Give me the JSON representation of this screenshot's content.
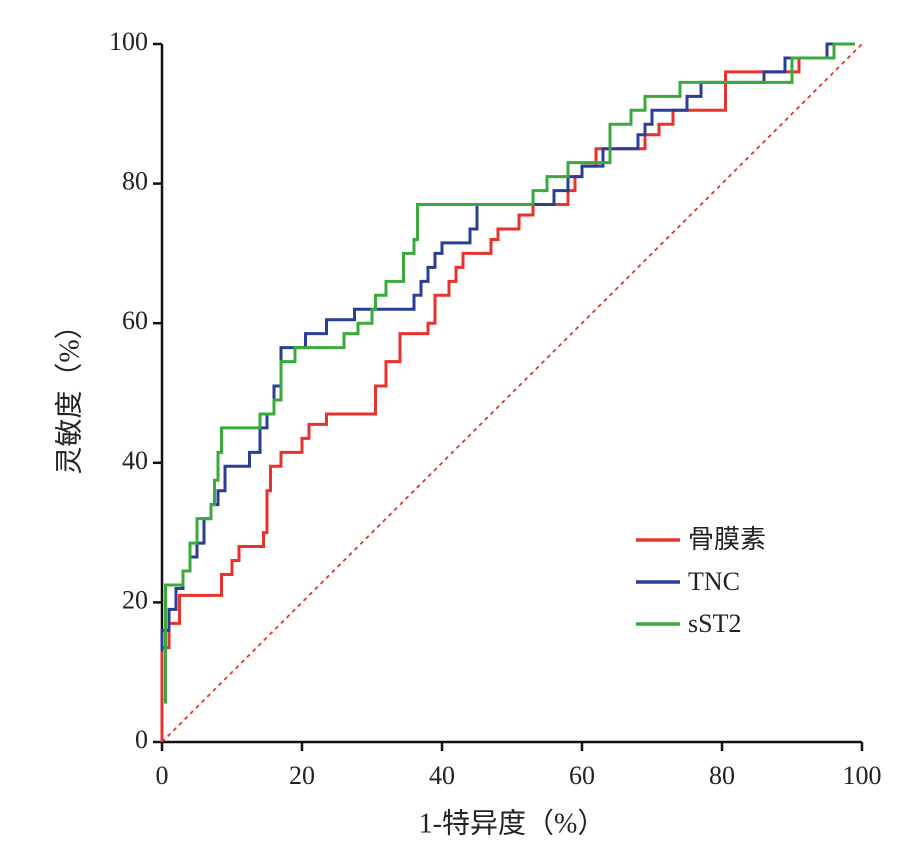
{
  "chart_data": {
    "type": "line",
    "step": true,
    "x_label": "1-特异度（%）",
    "y_label": "灵敏度（%）",
    "xlim": [
      0,
      100
    ],
    "ylim": [
      0,
      100
    ],
    "xticks": [
      0,
      20,
      40,
      60,
      80,
      100
    ],
    "yticks": [
      0,
      20,
      40,
      60,
      80,
      100
    ],
    "reference_line": true,
    "legend": "lower right",
    "series": [
      {
        "name": "骨膜素",
        "color": "#e8322d",
        "x": [
          0,
          0,
          1,
          1,
          2.5,
          2.5,
          8.5,
          8.5,
          10,
          10,
          11,
          11,
          14.5,
          14.5,
          15,
          15,
          15.5,
          15.5,
          17,
          17,
          20,
          20,
          21,
          21,
          23.5,
          23.5,
          30.5,
          30.5,
          32,
          32,
          34,
          34,
          38,
          38,
          39,
          39,
          41,
          41,
          42,
          42,
          43,
          43,
          47,
          47,
          48,
          48,
          51,
          51,
          53,
          53,
          58,
          58,
          59,
          59,
          60,
          60,
          62,
          62,
          69,
          69,
          71,
          71,
          73,
          73,
          80.5,
          80.5,
          91,
          91,
          96,
          96,
          99
        ],
        "values": [
          0,
          13.5,
          13.5,
          17,
          17,
          21,
          21,
          24,
          24,
          26,
          26,
          28,
          28,
          30,
          30,
          36,
          36,
          39.5,
          39.5,
          41.5,
          41.5,
          43.5,
          43.5,
          45.5,
          45.5,
          47,
          47,
          51,
          51,
          54.5,
          54.5,
          58.5,
          58.5,
          60,
          60,
          64,
          64,
          66,
          66,
          68,
          68,
          70,
          70,
          72,
          72,
          73.5,
          73.5,
          75.5,
          75.5,
          77,
          77,
          79,
          79,
          81,
          81,
          82.5,
          82.5,
          85,
          85,
          87,
          87,
          88.5,
          88.5,
          90.5,
          90.5,
          96,
          96,
          98,
          98,
          100,
          100
        ]
      },
      {
        "name": "TNC",
        "color": "#2b3d96",
        "x": [
          0,
          0,
          1,
          1,
          2,
          2,
          3,
          3,
          4,
          4,
          5,
          5,
          6,
          6,
          7,
          7,
          8,
          8,
          9,
          9,
          12.5,
          12.5,
          14,
          14,
          15,
          15,
          16,
          16,
          17,
          17,
          20.5,
          20.5,
          23.5,
          23.5,
          27.5,
          27.5,
          36,
          36,
          37,
          37,
          38,
          38,
          39,
          39,
          40,
          40,
          44,
          44,
          45,
          45,
          56,
          56,
          58,
          58,
          60,
          60,
          63,
          63,
          68,
          68,
          69,
          69,
          70,
          70,
          75,
          75,
          77,
          77,
          86,
          86,
          89,
          89,
          95,
          95,
          99
        ],
        "values": [
          13,
          16,
          16,
          19,
          19,
          22,
          22,
          24.5,
          24.5,
          26.5,
          26.5,
          28.5,
          28.5,
          32,
          32,
          34,
          34,
          36,
          36,
          39.5,
          39.5,
          41.5,
          41.5,
          45,
          45,
          47,
          47,
          51,
          51,
          56.5,
          56.5,
          58.5,
          58.5,
          60.5,
          60.5,
          62,
          62,
          64,
          64,
          66,
          66,
          68,
          68,
          70,
          70,
          71.5,
          71.5,
          73.5,
          73.5,
          77,
          77,
          79,
          79,
          81,
          81,
          82.5,
          82.5,
          85,
          85,
          87,
          87,
          88.5,
          88.5,
          90.5,
          90.5,
          92.5,
          92.5,
          94.5,
          94.5,
          96,
          96,
          98,
          98,
          100,
          100
        ]
      },
      {
        "name": "sST2",
        "color": "#3aaa3c",
        "x": [
          0.5,
          0.5,
          3,
          3,
          4,
          4,
          5,
          5,
          7,
          7,
          7.5,
          7.5,
          8,
          8,
          8.5,
          8.5,
          14,
          14,
          16,
          16,
          17,
          17,
          19,
          19,
          26,
          26,
          28,
          28,
          30,
          30,
          30.5,
          30.5,
          32,
          32,
          34.5,
          34.5,
          36,
          36,
          36.5,
          36.5,
          53,
          53,
          55,
          55,
          58,
          58,
          64,
          64,
          67,
          67,
          69,
          69,
          74,
          74,
          90,
          90,
          96,
          96,
          99
        ],
        "values": [
          5.5,
          22.5,
          22.5,
          24.5,
          24.5,
          28.5,
          28.5,
          32,
          32,
          34,
          34,
          37.5,
          37.5,
          41.5,
          41.5,
          45,
          45,
          47,
          47,
          49,
          49,
          54.5,
          54.5,
          56.5,
          56.5,
          58.5,
          58.5,
          60,
          60,
          62,
          62,
          64,
          64,
          66,
          66,
          70,
          70,
          72,
          72,
          77,
          77,
          79,
          79,
          81,
          81,
          83,
          83,
          88.5,
          88.5,
          90.5,
          90.5,
          92.5,
          92.5,
          94.5,
          94.5,
          98,
          98,
          100,
          100
        ]
      }
    ]
  }
}
